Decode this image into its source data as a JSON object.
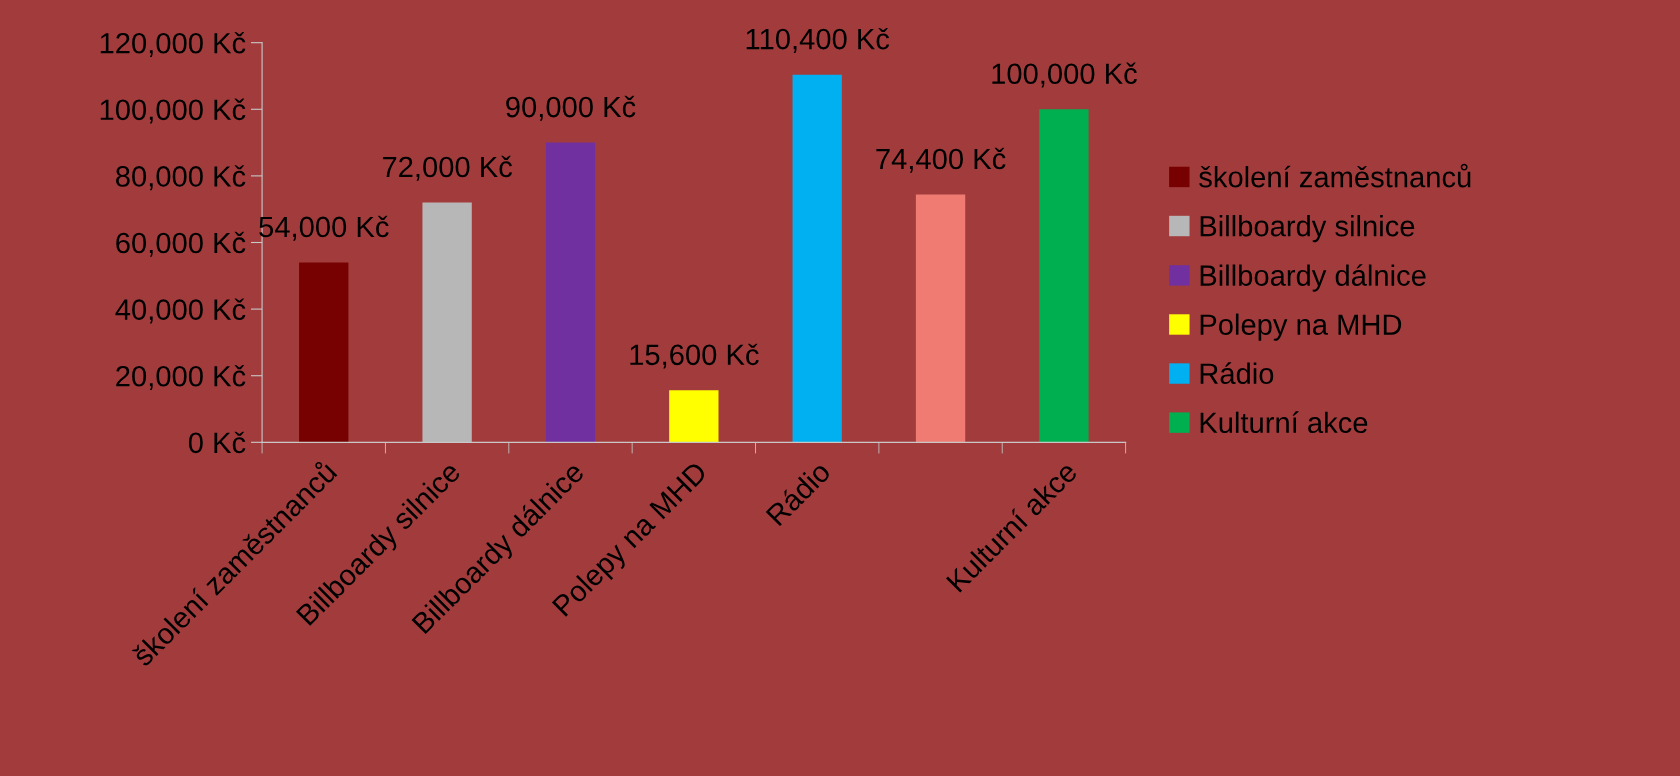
{
  "chart_data": {
    "type": "bar",
    "categories": [
      "školení zaměstnanců",
      "Billboardy silnice",
      "Billboardy dálnice",
      "Polepy na MHD",
      "Rádio",
      null,
      "Kulturní akce"
    ],
    "series": [
      {
        "name": "školení zaměstnanců",
        "color": "#770000",
        "values": [
          54000,
          null,
          null,
          null,
          null,
          null,
          null
        ],
        "value_labels": [
          "54,000 Kč",
          null,
          null,
          null,
          null,
          null,
          null
        ]
      },
      {
        "name": "Billboardy silnice",
        "color": "#b7b7b7",
        "values": [
          null,
          72000,
          null,
          null,
          null,
          null,
          null
        ],
        "value_labels": [
          null,
          "72,000 Kč",
          null,
          null,
          null,
          null,
          null
        ]
      },
      {
        "name": "Billboardy dálnice",
        "color": "#7030a0",
        "values": [
          null,
          null,
          90000,
          null,
          null,
          null,
          null
        ],
        "value_labels": [
          null,
          null,
          "90,000 Kč",
          null,
          null,
          null,
          null
        ]
      },
      {
        "name": "Polepy na MHD",
        "color": "#ffff00",
        "values": [
          null,
          null,
          null,
          15600,
          null,
          null,
          null
        ],
        "value_labels": [
          null,
          null,
          null,
          "15,600 Kč",
          null,
          null,
          null
        ]
      },
      {
        "name": "Rádio",
        "color": "#00b0f0",
        "values": [
          null,
          null,
          null,
          null,
          110400,
          null,
          null
        ],
        "value_labels": [
          null,
          null,
          null,
          null,
          "110,400 Kč",
          null,
          null
        ]
      },
      {
        "color": "#f07b72",
        "values": [
          null,
          null,
          null,
          null,
          null,
          74400,
          null
        ],
        "value_labels": [
          null,
          null,
          null,
          null,
          null,
          "74,400 Kč",
          null
        ]
      },
      {
        "name": "Kulturní akce",
        "color": "#00b050",
        "values": [
          null,
          null,
          null,
          null,
          null,
          null,
          100000
        ],
        "value_labels": [
          null,
          null,
          null,
          null,
          null,
          null,
          "100,000 Kč"
        ]
      }
    ],
    "ylim": [
      0,
      120000
    ],
    "yticks": [
      {
        "value": 0,
        "label": "0 Kč"
      },
      {
        "value": 20000,
        "label": "20,000 Kč"
      },
      {
        "value": 40000,
        "label": "40,000 Kč"
      },
      {
        "value": 60000,
        "label": "60,000 Kč"
      },
      {
        "value": 80000,
        "label": "80,000 Kč"
      },
      {
        "value": 100000,
        "label": "100,000 Kč"
      },
      {
        "value": 120000,
        "label": "120,000 Kč"
      }
    ],
    "grid": false,
    "legend": "right"
  }
}
